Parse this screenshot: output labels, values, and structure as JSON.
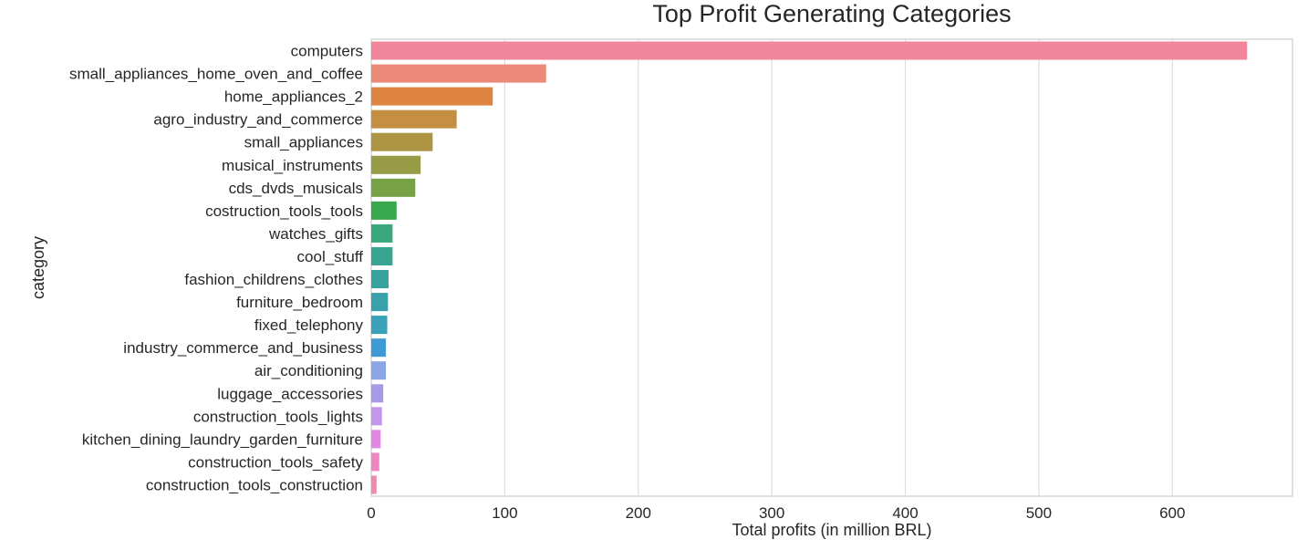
{
  "chart_data": {
    "type": "bar",
    "orientation": "horizontal",
    "title": "Top Profit Generating Categories",
    "xlabel": "Total profits (in million BRL)",
    "ylabel": "category",
    "xlim": [
      0,
      690
    ],
    "xticks": [
      0,
      100,
      200,
      300,
      400,
      500,
      600
    ],
    "grid": true,
    "categories": [
      "computers",
      "small_appliances_home_oven_and_coffee",
      "home_appliances_2",
      "agro_industry_and_commerce",
      "small_appliances",
      "musical_instruments",
      "cds_dvds_musicals",
      "costruction_tools_tools",
      "watches_gifts",
      "cool_stuff",
      "fashion_childrens_clothes",
      "furniture_bedroom",
      "fixed_telephony",
      "industry_commerce_and_business",
      "air_conditioning",
      "luggage_accessories",
      "construction_tools_lights",
      "kitchen_dining_laundry_garden_furniture",
      "construction_tools_safety",
      "construction_tools_construction"
    ],
    "values": [
      656,
      131,
      91,
      64,
      46,
      37,
      33,
      19,
      16,
      16,
      13,
      12.5,
      12,
      11,
      11,
      9,
      8,
      7,
      6,
      4
    ],
    "colors": [
      "#f0879a",
      "#eb8a79",
      "#dd8443",
      "#c58f43",
      "#ad9544",
      "#989b45",
      "#76a144",
      "#3aa84d",
      "#3aa77c",
      "#39a491",
      "#37a29e",
      "#38a1aa",
      "#39a1b8",
      "#3e9bd4",
      "#8ba6e6",
      "#a99ae9",
      "#c496ea",
      "#e186e3",
      "#ee86c4",
      "#f08aaa"
    ]
  }
}
